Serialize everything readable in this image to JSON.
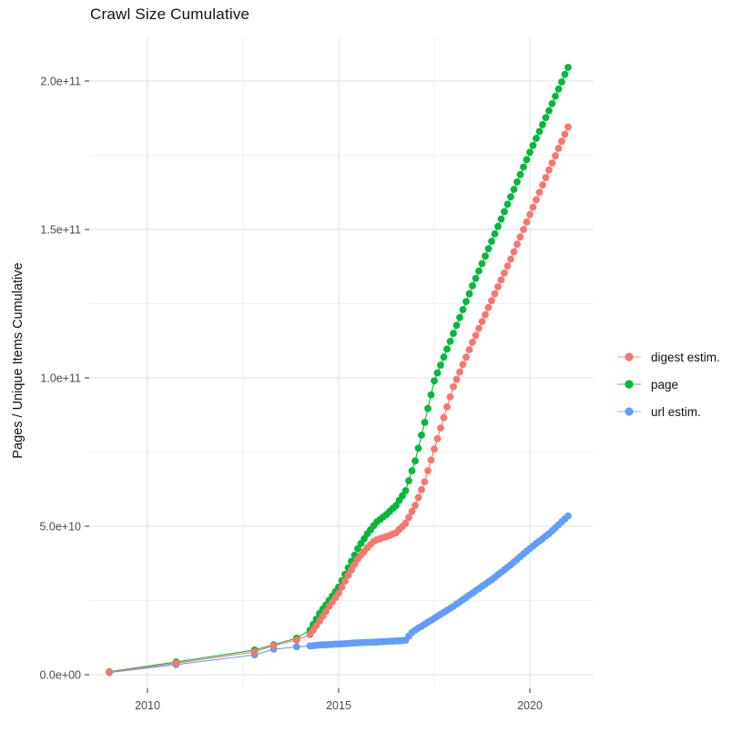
{
  "chart_data": {
    "type": "line",
    "title": "Crawl Size Cumulative",
    "xlabel": "",
    "ylabel": "Pages / Unique Items Cumulative",
    "legend_position": "right",
    "grid": true,
    "y_unit_multiplier": 1000000000.0,
    "xlim": [
      2008.5,
      2021.7
    ],
    "ylim": [
      -5000000000.0,
      215000000000.0
    ],
    "x_ticks": [
      {
        "value": 2010,
        "label": "2010"
      },
      {
        "value": 2015,
        "label": "2015"
      },
      {
        "value": 2020,
        "label": "2020"
      }
    ],
    "y_ticks": [
      {
        "value": 0,
        "label": "0.0e+00"
      },
      {
        "value": 50,
        "label": "5.0e+10"
      },
      {
        "value": 100,
        "label": "1.0e+11"
      },
      {
        "value": 150,
        "label": "1.5e+11"
      },
      {
        "value": 200,
        "label": "2.0e+11"
      }
    ],
    "x_minor": [
      2012.5,
      2017.5
    ],
    "y_minor": [
      25,
      75,
      125,
      175
    ],
    "series": [
      {
        "name": "digest estim.",
        "color": "#F8766D",
        "points": [
          [
            2009.0,
            0.9
          ],
          [
            2010.75,
            3.9
          ],
          [
            2012.8,
            7.7
          ],
          [
            2013.3,
            9.8
          ],
          [
            2013.9,
            11.7
          ],
          [
            2014.25,
            13.5
          ],
          [
            2014.333,
            15.0
          ],
          [
            2014.417,
            16.5
          ],
          [
            2014.5,
            18.0
          ],
          [
            2014.583,
            19.7
          ],
          [
            2014.667,
            21.3
          ],
          [
            2014.75,
            23.0
          ],
          [
            2014.833,
            24.5
          ],
          [
            2014.917,
            26.0
          ],
          [
            2015.0,
            27.5
          ],
          [
            2015.083,
            29.5
          ],
          [
            2015.167,
            31.5
          ],
          [
            2015.25,
            33.5
          ],
          [
            2015.333,
            35.3
          ],
          [
            2015.417,
            37.2
          ],
          [
            2015.5,
            39.0
          ],
          [
            2015.583,
            40.3
          ],
          [
            2015.667,
            41.5
          ],
          [
            2015.75,
            42.8
          ],
          [
            2015.833,
            43.9
          ],
          [
            2015.917,
            44.9
          ],
          [
            2016.0,
            45.5
          ],
          [
            2016.083,
            45.8
          ],
          [
            2016.167,
            46.2
          ],
          [
            2016.25,
            46.5
          ],
          [
            2016.333,
            46.9
          ],
          [
            2016.417,
            47.4
          ],
          [
            2016.5,
            47.8
          ],
          [
            2016.583,
            48.9
          ],
          [
            2016.667,
            49.9
          ],
          [
            2016.75,
            51.0
          ],
          [
            2016.833,
            53.0
          ],
          [
            2016.917,
            55.0
          ],
          [
            2017.0,
            57.0
          ],
          [
            2017.083,
            59.7
          ],
          [
            2017.167,
            62.3
          ],
          [
            2017.25,
            65.0
          ],
          [
            2017.333,
            68.7
          ],
          [
            2017.417,
            72.3
          ],
          [
            2017.5,
            76.0
          ],
          [
            2017.583,
            79.5
          ],
          [
            2017.667,
            83.1
          ],
          [
            2017.75,
            86.6
          ],
          [
            2017.833,
            90.2
          ],
          [
            2017.917,
            93.6
          ],
          [
            2018.0,
            97.0
          ],
          [
            2018.083,
            99.5
          ],
          [
            2018.167,
            102.0
          ],
          [
            2018.25,
            104.5
          ],
          [
            2018.333,
            107.0
          ],
          [
            2018.417,
            109.5
          ],
          [
            2018.5,
            112.0
          ],
          [
            2018.583,
            114.3
          ],
          [
            2018.667,
            116.7
          ],
          [
            2018.75,
            119.0
          ],
          [
            2018.833,
            121.3
          ],
          [
            2018.917,
            123.7
          ],
          [
            2019.0,
            126.0
          ],
          [
            2019.083,
            128.3
          ],
          [
            2019.167,
            130.7
          ],
          [
            2019.25,
            133.0
          ],
          [
            2019.333,
            135.3
          ],
          [
            2019.417,
            137.7
          ],
          [
            2019.5,
            140.0
          ],
          [
            2019.583,
            142.5
          ],
          [
            2019.667,
            145.0
          ],
          [
            2019.75,
            147.5
          ],
          [
            2019.833,
            150.0
          ],
          [
            2019.917,
            152.5
          ],
          [
            2020.0,
            155.0
          ],
          [
            2020.083,
            157.5
          ],
          [
            2020.167,
            160.0
          ],
          [
            2020.25,
            162.5
          ],
          [
            2020.333,
            165.0
          ],
          [
            2020.417,
            167.5
          ],
          [
            2020.5,
            170.0
          ],
          [
            2020.583,
            172.4
          ],
          [
            2020.667,
            174.8
          ],
          [
            2020.75,
            177.3
          ],
          [
            2020.833,
            179.7
          ],
          [
            2020.917,
            182.1
          ],
          [
            2021.0,
            184.5
          ]
        ]
      },
      {
        "name": "page",
        "color": "#00BA38",
        "points": [
          [
            2009.0,
            1.0
          ],
          [
            2010.75,
            4.3
          ],
          [
            2012.8,
            8.3
          ],
          [
            2013.3,
            10.1
          ],
          [
            2013.9,
            12.3
          ],
          [
            2014.25,
            15.0
          ],
          [
            2014.333,
            16.9
          ],
          [
            2014.417,
            18.7
          ],
          [
            2014.5,
            20.6
          ],
          [
            2014.583,
            22.1
          ],
          [
            2014.667,
            23.5
          ],
          [
            2014.75,
            25.0
          ],
          [
            2014.833,
            26.5
          ],
          [
            2014.917,
            28.0
          ],
          [
            2015.0,
            29.5
          ],
          [
            2015.083,
            31.7
          ],
          [
            2015.167,
            33.8
          ],
          [
            2015.25,
            36.0
          ],
          [
            2015.333,
            38.2
          ],
          [
            2015.417,
            40.3
          ],
          [
            2015.5,
            42.5
          ],
          [
            2015.583,
            44.2
          ],
          [
            2015.667,
            45.8
          ],
          [
            2015.75,
            47.5
          ],
          [
            2015.833,
            48.8
          ],
          [
            2015.917,
            50.2
          ],
          [
            2016.0,
            51.5
          ],
          [
            2016.083,
            52.3
          ],
          [
            2016.167,
            53.2
          ],
          [
            2016.25,
            54.0
          ],
          [
            2016.333,
            55.0
          ],
          [
            2016.417,
            56.0
          ],
          [
            2016.5,
            57.0
          ],
          [
            2016.583,
            58.7
          ],
          [
            2016.667,
            60.3
          ],
          [
            2016.75,
            62.0
          ],
          [
            2016.833,
            65.3
          ],
          [
            2016.917,
            68.7
          ],
          [
            2017.0,
            72.0
          ],
          [
            2017.083,
            76.3
          ],
          [
            2017.167,
            80.7
          ],
          [
            2017.25,
            85.0
          ],
          [
            2017.333,
            89.7
          ],
          [
            2017.417,
            94.3
          ],
          [
            2017.5,
            99.0
          ],
          [
            2017.583,
            101.7
          ],
          [
            2017.667,
            104.3
          ],
          [
            2017.75,
            107.0
          ],
          [
            2017.833,
            109.7
          ],
          [
            2017.917,
            112.3
          ],
          [
            2018.0,
            115.0
          ],
          [
            2018.083,
            117.7
          ],
          [
            2018.167,
            120.3
          ],
          [
            2018.25,
            123.0
          ],
          [
            2018.333,
            125.7
          ],
          [
            2018.417,
            128.3
          ],
          [
            2018.5,
            131.0
          ],
          [
            2018.583,
            133.5
          ],
          [
            2018.667,
            136.0
          ],
          [
            2018.75,
            138.5
          ],
          [
            2018.833,
            141.0
          ],
          [
            2018.917,
            143.5
          ],
          [
            2019.0,
            146.0
          ],
          [
            2019.083,
            148.5
          ],
          [
            2019.167,
            151.0
          ],
          [
            2019.25,
            153.5
          ],
          [
            2019.333,
            156.0
          ],
          [
            2019.417,
            158.5
          ],
          [
            2019.5,
            161.0
          ],
          [
            2019.583,
            163.5
          ],
          [
            2019.667,
            166.0
          ],
          [
            2019.75,
            168.5
          ],
          [
            2019.833,
            171.0
          ],
          [
            2019.917,
            173.5
          ],
          [
            2020.0,
            176.0
          ],
          [
            2020.083,
            178.3
          ],
          [
            2020.167,
            180.7
          ],
          [
            2020.25,
            183.0
          ],
          [
            2020.333,
            185.3
          ],
          [
            2020.417,
            187.7
          ],
          [
            2020.5,
            190.0
          ],
          [
            2020.583,
            192.4
          ],
          [
            2020.667,
            194.9
          ],
          [
            2020.75,
            197.3
          ],
          [
            2020.833,
            199.7
          ],
          [
            2020.917,
            202.2
          ],
          [
            2021.0,
            204.6
          ]
        ]
      },
      {
        "name": "url estim.",
        "color": "#619CFF",
        "points": [
          [
            2009.0,
            0.7
          ],
          [
            2010.75,
            3.4
          ],
          [
            2012.8,
            6.7
          ],
          [
            2013.3,
            8.6
          ],
          [
            2013.9,
            9.4
          ],
          [
            2014.25,
            9.7
          ],
          [
            2014.333,
            9.8
          ],
          [
            2014.417,
            9.9
          ],
          [
            2014.5,
            10.0
          ],
          [
            2014.583,
            10.05
          ],
          [
            2014.667,
            10.1
          ],
          [
            2014.75,
            10.15
          ],
          [
            2014.833,
            10.2
          ],
          [
            2014.917,
            10.3
          ],
          [
            2015.0,
            10.35
          ],
          [
            2015.083,
            10.4
          ],
          [
            2015.167,
            10.45
          ],
          [
            2015.25,
            10.5
          ],
          [
            2015.333,
            10.6
          ],
          [
            2015.417,
            10.7
          ],
          [
            2015.5,
            10.75
          ],
          [
            2015.583,
            10.8
          ],
          [
            2015.667,
            10.85
          ],
          [
            2015.75,
            10.9
          ],
          [
            2015.833,
            10.9
          ],
          [
            2015.917,
            10.95
          ],
          [
            2016.0,
            11.0
          ],
          [
            2016.083,
            11.1
          ],
          [
            2016.167,
            11.15
          ],
          [
            2016.25,
            11.2
          ],
          [
            2016.333,
            11.25
          ],
          [
            2016.417,
            11.3
          ],
          [
            2016.5,
            11.35
          ],
          [
            2016.583,
            11.4
          ],
          [
            2016.667,
            11.5
          ],
          [
            2016.75,
            11.6
          ],
          [
            2016.833,
            13.0
          ],
          [
            2016.917,
            14.2
          ],
          [
            2017.0,
            15.0
          ],
          [
            2017.083,
            15.7
          ],
          [
            2017.167,
            16.3
          ],
          [
            2017.25,
            17.0
          ],
          [
            2017.333,
            17.7
          ],
          [
            2017.417,
            18.3
          ],
          [
            2017.5,
            19.0
          ],
          [
            2017.583,
            19.7
          ],
          [
            2017.667,
            20.3
          ],
          [
            2017.75,
            21.0
          ],
          [
            2017.833,
            21.7
          ],
          [
            2017.917,
            22.3
          ],
          [
            2018.0,
            23.0
          ],
          [
            2018.083,
            23.8
          ],
          [
            2018.167,
            24.5
          ],
          [
            2018.25,
            25.3
          ],
          [
            2018.333,
            26.0
          ],
          [
            2018.417,
            26.8
          ],
          [
            2018.5,
            27.5
          ],
          [
            2018.583,
            28.3
          ],
          [
            2018.667,
            29.0
          ],
          [
            2018.75,
            29.8
          ],
          [
            2018.833,
            30.5
          ],
          [
            2018.917,
            31.3
          ],
          [
            2019.0,
            32.0
          ],
          [
            2019.083,
            32.8
          ],
          [
            2019.167,
            33.7
          ],
          [
            2019.25,
            34.5
          ],
          [
            2019.333,
            35.3
          ],
          [
            2019.417,
            36.2
          ],
          [
            2019.5,
            37.0
          ],
          [
            2019.583,
            37.9
          ],
          [
            2019.667,
            38.8
          ],
          [
            2019.75,
            39.8
          ],
          [
            2019.833,
            40.7
          ],
          [
            2019.917,
            41.6
          ],
          [
            2020.0,
            42.5
          ],
          [
            2020.083,
            43.3
          ],
          [
            2020.167,
            44.2
          ],
          [
            2020.25,
            45.0
          ],
          [
            2020.333,
            45.8
          ],
          [
            2020.417,
            46.7
          ],
          [
            2020.5,
            47.5
          ],
          [
            2020.583,
            48.5
          ],
          [
            2020.667,
            49.5
          ],
          [
            2020.75,
            50.5
          ],
          [
            2020.833,
            51.5
          ],
          [
            2020.917,
            52.5
          ],
          [
            2021.0,
            53.5
          ]
        ]
      }
    ]
  }
}
